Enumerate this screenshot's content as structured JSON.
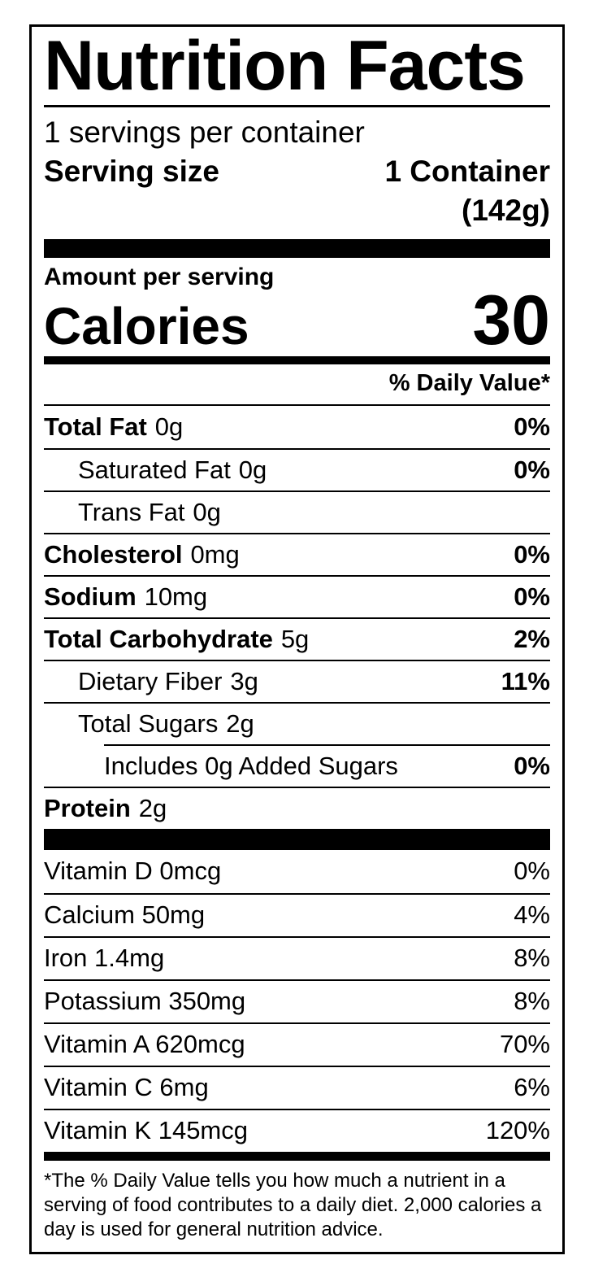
{
  "colors": {
    "text": "#000000",
    "background": "#ffffff",
    "rule": "#000000"
  },
  "label": {
    "title": "Nutrition Facts",
    "servings_per_container": "1 servings per container",
    "serving_size_label": "Serving size",
    "serving_size_value": "1 Container",
    "serving_size_weight": "(142g)",
    "amount_per_serving": "Amount per serving",
    "calories_label": "Calories",
    "calories_value": "30",
    "daily_value_header": "% Daily Value*"
  },
  "nutrients": [
    {
      "name": "Total Fat",
      "amount": "0g",
      "dv": "0%"
    },
    {
      "name": "Saturated Fat",
      "amount": "0g",
      "dv": "0%"
    },
    {
      "name": "Trans Fat",
      "amount": "0g",
      "dv": ""
    },
    {
      "name": "Cholesterol",
      "amount": "0mg",
      "dv": "0%"
    },
    {
      "name": "Sodium",
      "amount": "10mg",
      "dv": "0%"
    },
    {
      "name": "Total Carbohydrate",
      "amount": "5g",
      "dv": "2%"
    },
    {
      "name": "Dietary Fiber",
      "amount": "3g",
      "dv": "11%"
    },
    {
      "name": "Total Sugars",
      "amount": "2g",
      "dv": ""
    },
    {
      "name": "Includes 0g Added Sugars",
      "amount": "",
      "dv": "0%"
    },
    {
      "name": "Protein",
      "amount": "2g",
      "dv": ""
    }
  ],
  "vitamins": [
    {
      "name": "Vitamin D 0mcg",
      "dv": "0%"
    },
    {
      "name": "Calcium 50mg",
      "dv": "4%"
    },
    {
      "name": "Iron 1.4mg",
      "dv": "8%"
    },
    {
      "name": "Potassium 350mg",
      "dv": "8%"
    },
    {
      "name": "Vitamin A 620mcg",
      "dv": "70%"
    },
    {
      "name": "Vitamin C 6mg",
      "dv": "6%"
    },
    {
      "name": "Vitamin K 145mcg",
      "dv": "120%"
    }
  ],
  "footnote": {
    "lines": [
      "*The % Daily Value tells you how much a nutrient in a",
      "serving of food contributes to a daily diet. 2,000 calories a",
      "day is used for general nutrition advice."
    ]
  }
}
